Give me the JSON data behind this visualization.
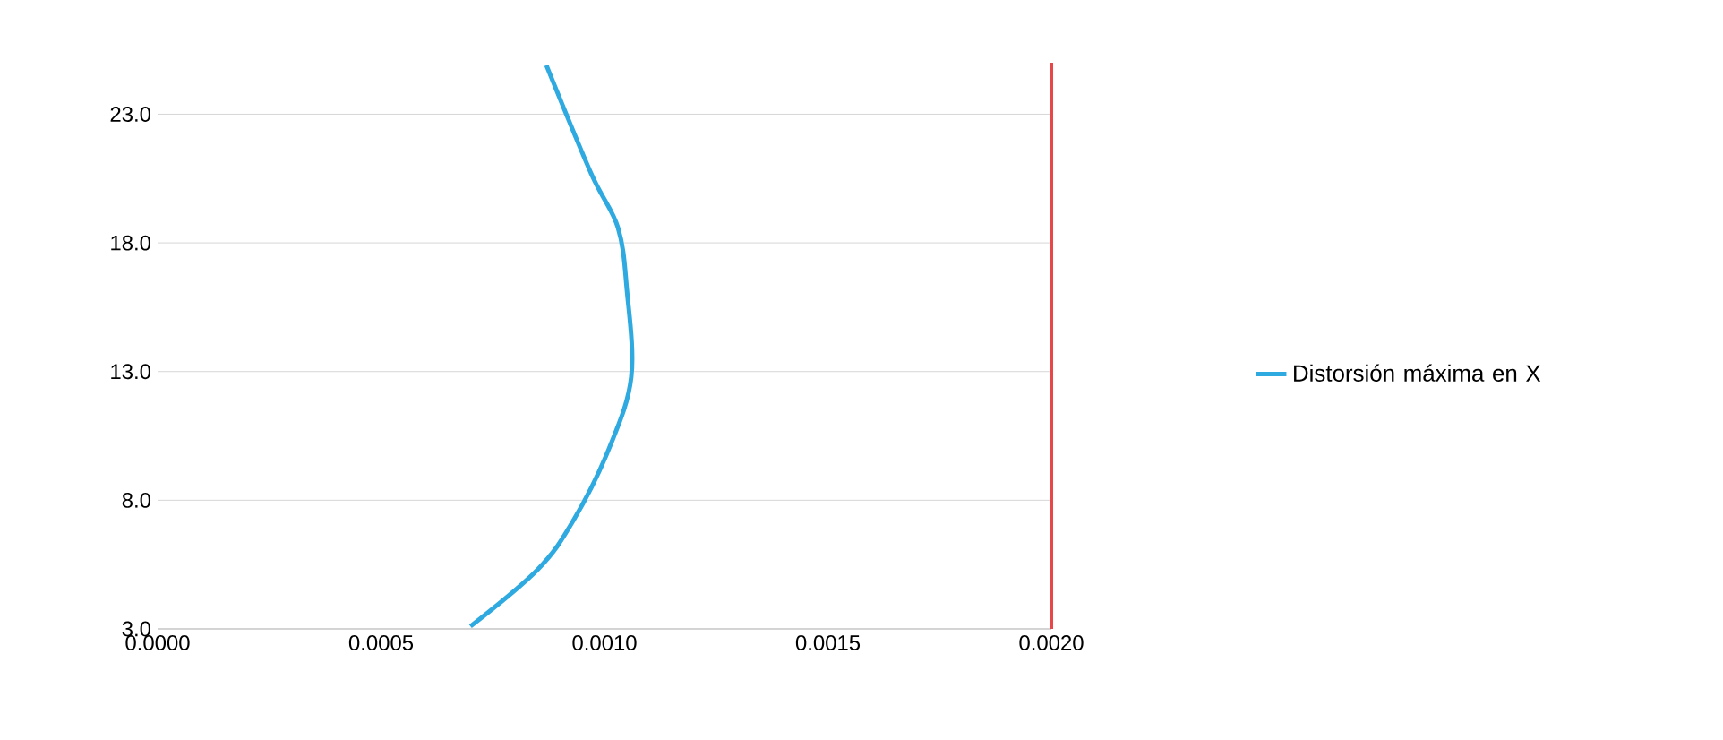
{
  "chart_data": {
    "type": "line",
    "x": [
      0.0007,
      0.00085,
      0.00093,
      0.00101,
      0.00106,
      0.00105,
      0.00103,
      0.00097,
      0.00087
    ],
    "series": [
      {
        "name": "Distorsión máxima en X",
        "color": "#2eaae1",
        "values": [
          3.1,
          5.3,
          7.2,
          10.0,
          12.8,
          16.2,
          18.6,
          20.7,
          24.9
        ]
      }
    ],
    "xlim": [
      0,
      0.002
    ],
    "ylim": [
      3,
      25
    ],
    "xticks": [
      {
        "value": 0,
        "label": "0.0000"
      },
      {
        "value": 0.0005,
        "label": "0.0005"
      },
      {
        "value": 0.001,
        "label": "0.0010"
      },
      {
        "value": 0.0015,
        "label": "0.0015"
      },
      {
        "value": 0.002,
        "label": "0.0020"
      }
    ],
    "yticks": [
      {
        "value": 3,
        "label": "3.0"
      },
      {
        "value": 8,
        "label": "8.0"
      },
      {
        "value": 13,
        "label": "13.0"
      },
      {
        "value": 18,
        "label": "18.0"
      },
      {
        "value": 23,
        "label": "23.0"
      }
    ],
    "ref_lines": [
      {
        "axis": "x",
        "value": 0.002,
        "color": "#e8474a"
      }
    ],
    "grid": "y",
    "legend": "right",
    "marker": "none",
    "line_style": "solid"
  }
}
